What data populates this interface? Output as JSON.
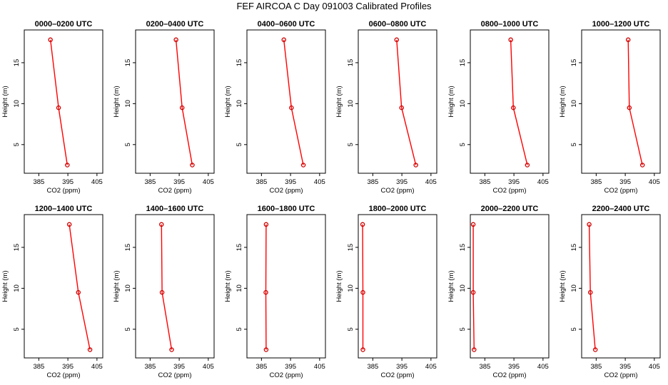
{
  "title": "FEF AIRCOA C  Day 091003  Calibrated Profiles",
  "colors": {
    "line": "#ff0000",
    "marker": "#cc0000",
    "axis": "#000000"
  },
  "chart_data": [
    {
      "type": "line",
      "title": "0000–0200 UTC",
      "xlabel": "CO2 (ppm)",
      "ylabel": "Height (m)",
      "xlim": [
        380,
        407
      ],
      "ylim": [
        1.5,
        19
      ],
      "xticks": [
        385,
        395,
        405
      ],
      "yticks": [
        5,
        10,
        15
      ],
      "x": [
        389.0,
        391.8,
        394.8
      ],
      "y": [
        17.8,
        9.5,
        2.5
      ]
    },
    {
      "type": "line",
      "title": "0200–0400 UTC",
      "xlabel": "CO2 (ppm)",
      "ylabel": "Height (m)",
      "xlim": [
        380,
        407
      ],
      "ylim": [
        1.5,
        19
      ],
      "xticks": [
        385,
        395,
        405
      ],
      "yticks": [
        5,
        10,
        15
      ],
      "x": [
        393.9,
        396.0,
        399.5
      ],
      "y": [
        17.8,
        9.5,
        2.5
      ]
    },
    {
      "type": "line",
      "title": "0400–0600 UTC",
      "xlabel": "CO2 (ppm)",
      "ylabel": "Height (m)",
      "xlim": [
        380,
        407
      ],
      "ylim": [
        1.5,
        19
      ],
      "xticks": [
        385,
        395,
        405
      ],
      "yticks": [
        5,
        10,
        15
      ],
      "x": [
        392.7,
        395.3,
        399.4
      ],
      "y": [
        17.8,
        9.5,
        2.5
      ]
    },
    {
      "type": "line",
      "title": "0600–0800 UTC",
      "xlabel": "CO2 (ppm)",
      "ylabel": "Height (m)",
      "xlim": [
        380,
        407
      ],
      "ylim": [
        1.5,
        19
      ],
      "xticks": [
        385,
        395,
        405
      ],
      "yticks": [
        5,
        10,
        15
      ],
      "x": [
        393.2,
        394.9,
        399.8
      ],
      "y": [
        17.8,
        9.5,
        2.5
      ]
    },
    {
      "type": "line",
      "title": "0800–1000 UTC",
      "xlabel": "CO2 (ppm)",
      "ylabel": "Height (m)",
      "xlim": [
        380,
        407
      ],
      "ylim": [
        1.5,
        19
      ],
      "xticks": [
        385,
        395,
        405
      ],
      "yticks": [
        5,
        10,
        15
      ],
      "x": [
        393.9,
        394.8,
        399.6
      ],
      "y": [
        17.8,
        9.5,
        2.5
      ]
    },
    {
      "type": "line",
      "title": "1000–1200 UTC",
      "xlabel": "CO2 (ppm)",
      "ylabel": "Height (m)",
      "xlim": [
        380,
        407
      ],
      "ylim": [
        1.5,
        19
      ],
      "xticks": [
        385,
        395,
        405
      ],
      "yticks": [
        5,
        10,
        15
      ],
      "x": [
        396.0,
        396.4,
        400.9
      ],
      "y": [
        17.8,
        9.5,
        2.5
      ]
    },
    {
      "type": "line",
      "title": "1200–1400 UTC",
      "xlabel": "CO2 (ppm)",
      "ylabel": "Height (m)",
      "xlim": [
        380,
        407
      ],
      "ylim": [
        1.5,
        19
      ],
      "xticks": [
        385,
        395,
        405
      ],
      "yticks": [
        5,
        10,
        15
      ],
      "x": [
        395.5,
        398.6,
        402.6
      ],
      "y": [
        17.8,
        9.5,
        2.5
      ]
    },
    {
      "type": "line",
      "title": "1400–1600 UTC",
      "xlabel": "CO2 (ppm)",
      "ylabel": "Height (m)",
      "xlim": [
        380,
        407
      ],
      "ylim": [
        1.5,
        19
      ],
      "xticks": [
        385,
        395,
        405
      ],
      "yticks": [
        5,
        10,
        15
      ],
      "x": [
        388.9,
        389.1,
        392.4
      ],
      "y": [
        17.8,
        9.5,
        2.5
      ]
    },
    {
      "type": "line",
      "title": "1600–1800 UTC",
      "xlabel": "CO2 (ppm)",
      "ylabel": "Height (m)",
      "xlim": [
        380,
        407
      ],
      "ylim": [
        1.5,
        19
      ],
      "xticks": [
        385,
        395,
        405
      ],
      "yticks": [
        5,
        10,
        15
      ],
      "x": [
        386.6,
        386.5,
        386.6
      ],
      "y": [
        17.8,
        9.5,
        2.5
      ]
    },
    {
      "type": "line",
      "title": "1800–2000 UTC",
      "xlabel": "CO2 (ppm)",
      "ylabel": "Height (m)",
      "xlim": [
        380,
        407
      ],
      "ylim": [
        1.5,
        19
      ],
      "xticks": [
        385,
        395,
        405
      ],
      "yticks": [
        5,
        10,
        15
      ],
      "x": [
        381.5,
        381.6,
        381.6
      ],
      "y": [
        17.8,
        9.5,
        2.5
      ]
    },
    {
      "type": "line",
      "title": "2000–2200 UTC",
      "xlabel": "CO2 (ppm)",
      "ylabel": "Height (m)",
      "xlim": [
        380,
        407
      ],
      "ylim": [
        1.5,
        19
      ],
      "xticks": [
        385,
        395,
        405
      ],
      "yticks": [
        5,
        10,
        15
      ],
      "x": [
        381.0,
        381.0,
        381.3
      ],
      "y": [
        17.8,
        9.5,
        2.5
      ]
    },
    {
      "type": "line",
      "title": "2200–2400 UTC",
      "xlabel": "CO2 (ppm)",
      "ylabel": "Height (m)",
      "xlim": [
        380,
        407
      ],
      "ylim": [
        1.5,
        19
      ],
      "xticks": [
        385,
        395,
        405
      ],
      "yticks": [
        5,
        10,
        15
      ],
      "x": [
        382.6,
        383.0,
        384.7
      ],
      "y": [
        17.8,
        9.5,
        2.5
      ]
    }
  ]
}
